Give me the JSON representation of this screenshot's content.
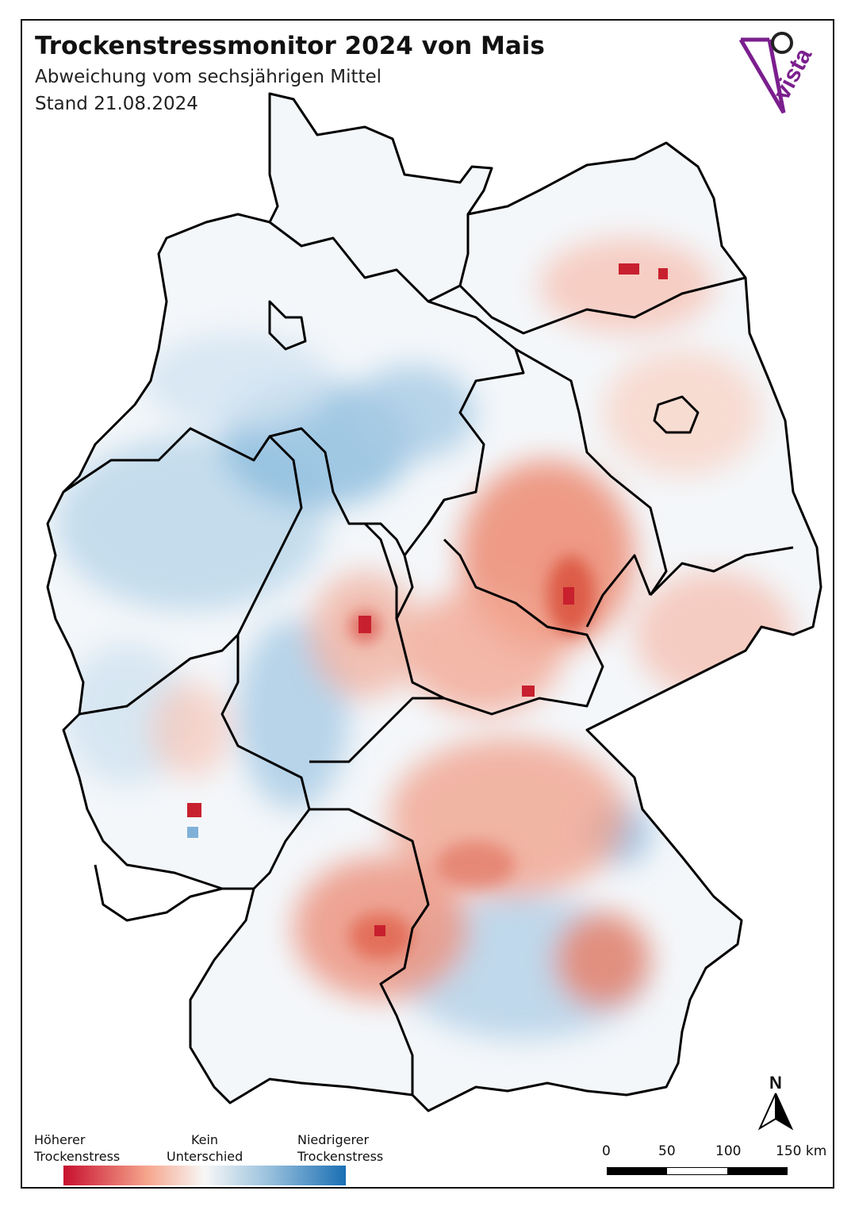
{
  "title": "Trockenstressmonitor 2024 von Mais",
  "subtitle": "Abweichung vom sechsjährigen Mittel",
  "date": "Stand 21.08.2024",
  "logo_text": "vista",
  "legend": {
    "left_line1": "Höherer",
    "left_line2": "Trockenstress",
    "middle_line1": "Kein",
    "middle_line2": "Unterschied",
    "right_line1": "Niedrigerer",
    "right_line2": "Trockenstress",
    "colors": [
      "#c8102e",
      "#f6a78e",
      "#f7f7f7",
      "#9cc3de",
      "#1a6fb4"
    ]
  },
  "scale": {
    "ticks": [
      "0",
      "50",
      "100",
      "150 km"
    ]
  },
  "north_label": "N",
  "map": {
    "country": "Deutschland",
    "border_color": "#000000",
    "dry_color": "#e8735a",
    "wet_color": "#6aa6d2"
  }
}
